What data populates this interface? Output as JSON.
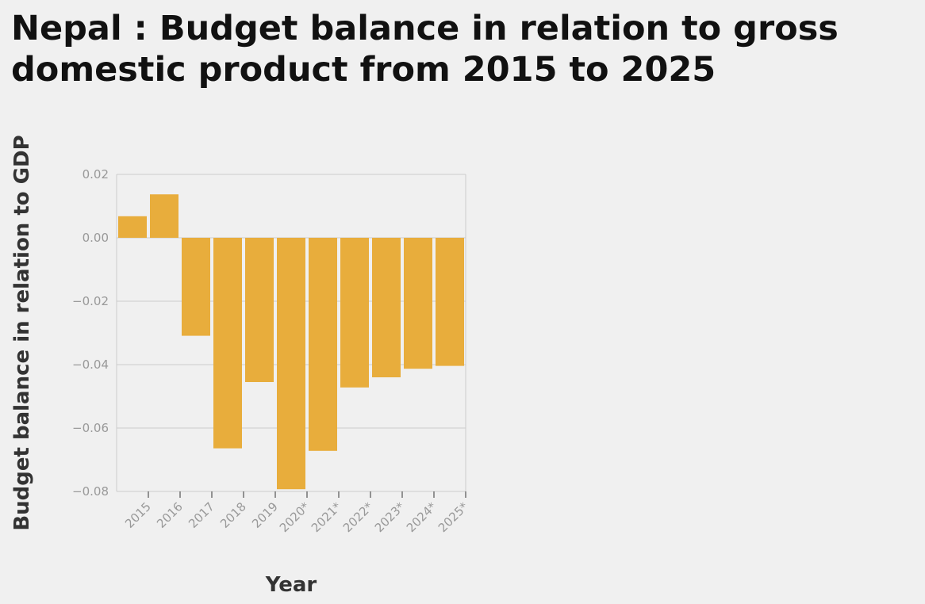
{
  "chart_data": {
    "type": "bar",
    "title": "Nepal : Budget balance in relation to gross domestic product from 2015 to 2025",
    "xlabel": "Year",
    "ylabel": "Budget balance in relation to GDP",
    "categories": [
      "2015",
      "2016",
      "2017",
      "2018",
      "2019",
      "2020*",
      "2021*",
      "2022*",
      "2023*",
      "2024*",
      "2025*"
    ],
    "values": [
      0.0068,
      0.0137,
      -0.0309,
      -0.0664,
      -0.0455,
      -0.0793,
      -0.0672,
      -0.0472,
      -0.044,
      -0.0413,
      -0.0404
    ],
    "ylim": [
      -0.08,
      0.02
    ],
    "yticks": [
      "0.02",
      "0.00",
      "−0.02",
      "−0.04",
      "−0.06",
      "−0.08"
    ],
    "grid": true,
    "bar_color": "#e8ad3c"
  }
}
